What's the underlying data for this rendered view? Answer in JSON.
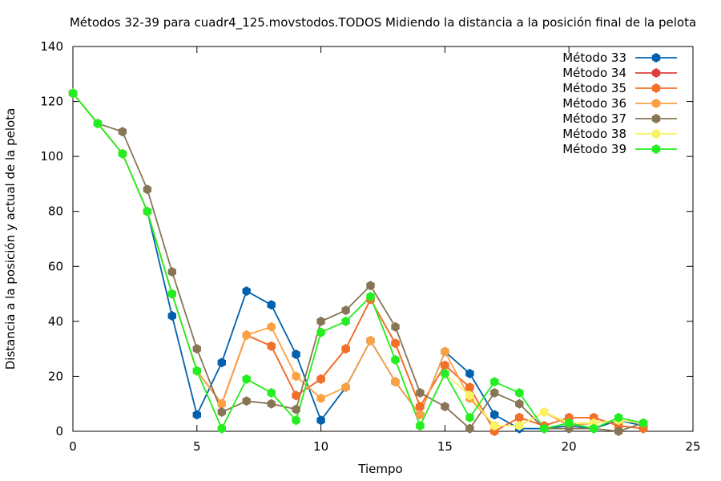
{
  "chart_data": {
    "type": "line",
    "title": "Métodos 32-39 para cuadr4_125.movstodos.TODOS Midiendo la distancia a la posición final de la pelota",
    "xlabel": "Tiempo",
    "ylabel": "Distancia a la posición y actual de la pelota",
    "xlim": [
      0,
      25
    ],
    "ylim": [
      0,
      140
    ],
    "x_ticks": [
      "0",
      "5",
      "10",
      "15",
      "20",
      "25"
    ],
    "y_ticks": [
      "0",
      "20",
      "40",
      "60",
      "80",
      "100",
      "120",
      "140"
    ],
    "grid": false,
    "legend_position": "top-right",
    "x": [
      0,
      1,
      2,
      3,
      4,
      5,
      6,
      7,
      8,
      9,
      10,
      11,
      12,
      13,
      14,
      15,
      16,
      17,
      18,
      19,
      20,
      21,
      22,
      23
    ],
    "series": [
      {
        "name": "Método 33",
        "color": "#0060ad",
        "values": [
          123,
          112,
          101,
          80,
          42,
          6,
          25,
          51,
          46,
          28,
          4,
          16,
          33,
          18,
          6,
          29,
          21,
          6,
          1,
          1,
          2,
          1,
          4,
          2
        ]
      },
      {
        "name": "Método 34",
        "color": "#dd4040",
        "values": [
          123,
          112,
          101,
          80,
          50,
          22,
          10,
          35,
          31,
          13,
          19,
          30,
          48,
          32,
          9,
          24,
          16,
          0,
          5,
          2,
          5,
          5,
          2,
          1
        ]
      },
      {
        "name": "Método 35",
        "color": "#f37028",
        "values": [
          123,
          112,
          101,
          80,
          50,
          22,
          10,
          35,
          31,
          13,
          19,
          30,
          48,
          32,
          9,
          24,
          16,
          0,
          5,
          2,
          5,
          5,
          2,
          1
        ]
      },
      {
        "name": "Método 36",
        "color": "#fca142",
        "values": [
          123,
          112,
          101,
          80,
          50,
          22,
          10,
          35,
          38,
          20,
          12,
          16,
          33,
          18,
          6,
          29,
          12,
          2,
          2,
          7,
          2,
          3,
          4,
          3
        ]
      },
      {
        "name": "Método 37",
        "color": "#877555",
        "values": [
          123,
          112,
          109,
          88,
          58,
          30,
          7,
          11,
          10,
          8,
          40,
          44,
          53,
          38,
          14,
          9,
          1,
          14,
          10,
          1,
          1,
          1,
          0,
          3
        ]
      },
      {
        "name": "Método 38",
        "color": "#f9f262",
        "values": [
          123,
          112,
          101,
          80,
          50,
          22,
          1,
          19,
          14,
          4,
          36,
          40,
          49,
          26,
          2,
          21,
          13,
          2,
          2,
          7,
          3,
          3,
          4,
          3
        ]
      },
      {
        "name": "Método 39",
        "color": "#22ee22",
        "values": [
          123,
          112,
          101,
          80,
          50,
          22,
          1,
          19,
          14,
          4,
          36,
          40,
          49,
          26,
          2,
          21,
          5,
          18,
          14,
          1,
          3,
          1,
          5,
          3
        ]
      }
    ]
  }
}
